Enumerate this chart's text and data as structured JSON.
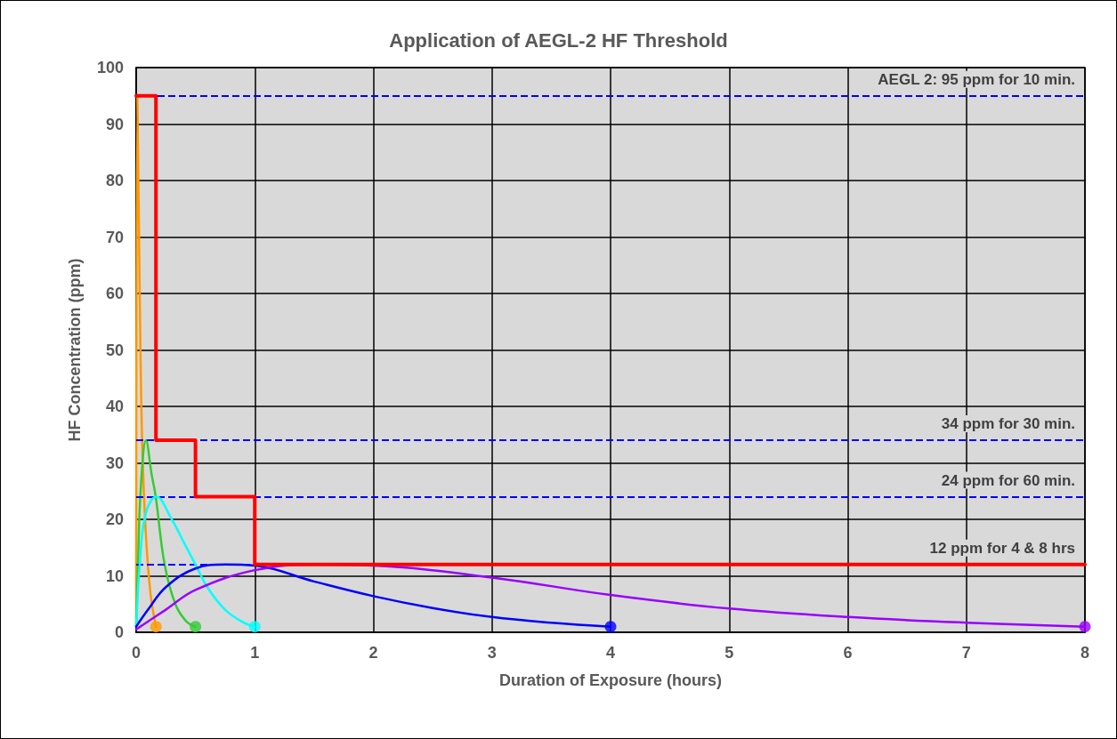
{
  "chart_data": {
    "type": "line",
    "title": "Application of AEGL-2 HF Threshold",
    "xlabel": "Duration of Exposure (hours)",
    "ylabel": "HF Concentration (ppm)",
    "xlim": [
      0,
      8
    ],
    "xticks": [
      0,
      1,
      2,
      3,
      4,
      5,
      6,
      7,
      8
    ],
    "ylim": [
      0,
      100
    ],
    "yticks": [
      0,
      10,
      20,
      30,
      40,
      50,
      60,
      70,
      80,
      90,
      100
    ],
    "grid": true,
    "line_style": "solid",
    "series": [
      {
        "color": "#ff9900",
        "x": [
          0,
          0.01,
          0.03,
          0.05,
          0.08,
          0.12,
          0.1667
        ],
        "values": [
          1,
          95,
          60,
          34,
          18,
          7,
          1
        ]
      },
      {
        "color": "#33cc33",
        "x": [
          0,
          0.015,
          0.04,
          0.083,
          0.13,
          0.165,
          0.24,
          0.33,
          0.42,
          0.5
        ],
        "values": [
          1,
          12,
          26,
          34,
          28,
          24,
          12,
          5,
          2,
          1
        ]
      },
      {
        "color": "#00ffff",
        "x": [
          0,
          0.03,
          0.08,
          0.17,
          0.3,
          0.4,
          0.5,
          0.6,
          0.75,
          0.9,
          1
        ],
        "values": [
          1,
          12,
          21,
          24,
          20,
          16,
          12,
          8,
          4,
          1.8,
          1
        ]
      },
      {
        "color": "#0000ff",
        "x": [
          0,
          0.1,
          0.25,
          0.5,
          0.75,
          1,
          1.5,
          2,
          2.5,
          3,
          3.5,
          4
        ],
        "values": [
          1,
          4,
          8,
          11.3,
          12,
          11.8,
          9,
          6.4,
          4.3,
          2.7,
          1.7,
          1
        ]
      },
      {
        "color": "#9900ff",
        "x": [
          0,
          0.25,
          0.5,
          1,
          1.5,
          2,
          3,
          4,
          5,
          6,
          7,
          8
        ],
        "values": [
          0.5,
          4,
          7.5,
          11,
          12,
          11.8,
          9.7,
          6.6,
          4.2,
          2.7,
          1.7,
          1
        ]
      },
      {
        "color": "#ff0000",
        "x": [
          0,
          0.1667,
          0.1667,
          0.5,
          0.5,
          1,
          1,
          8
        ],
        "values": [
          95,
          95,
          34,
          34,
          24,
          24,
          12,
          12
        ]
      },
      {
        "type": "scatter",
        "marker": "circle",
        "color": "#ff9900",
        "x": [
          0.1667
        ],
        "values": [
          1
        ]
      },
      {
        "type": "scatter",
        "marker": "circle",
        "color": "#33cc33",
        "x": [
          0.5
        ],
        "values": [
          1
        ]
      },
      {
        "type": "scatter",
        "marker": "circle",
        "color": "#00ffff",
        "x": [
          1
        ],
        "values": [
          1
        ]
      },
      {
        "type": "scatter",
        "marker": "circle",
        "color": "#0000ff",
        "x": [
          4
        ],
        "values": [
          1
        ]
      },
      {
        "type": "scatter",
        "marker": "circle",
        "color": "#9900ff",
        "x": [
          8
        ],
        "values": [
          1
        ]
      }
    ],
    "ref_lines": [
      {
        "axis": "y",
        "value": 95,
        "label": "AEGL 2: 95 ppm for 10 min.",
        "color": "#0000ff",
        "line_style": "dashed"
      },
      {
        "axis": "y",
        "value": 34,
        "label": "34 ppm for 30 min.",
        "color": "#0000ff",
        "line_style": "dashed"
      },
      {
        "axis": "y",
        "value": 24,
        "label": "24 ppm for 60 min.",
        "color": "#0000ff",
        "line_style": "dashed"
      },
      {
        "axis": "y",
        "value": 12,
        "label": "12 ppm for 4 & 8 hrs",
        "color": "#0000ff",
        "line_style": "dashed"
      }
    ]
  }
}
